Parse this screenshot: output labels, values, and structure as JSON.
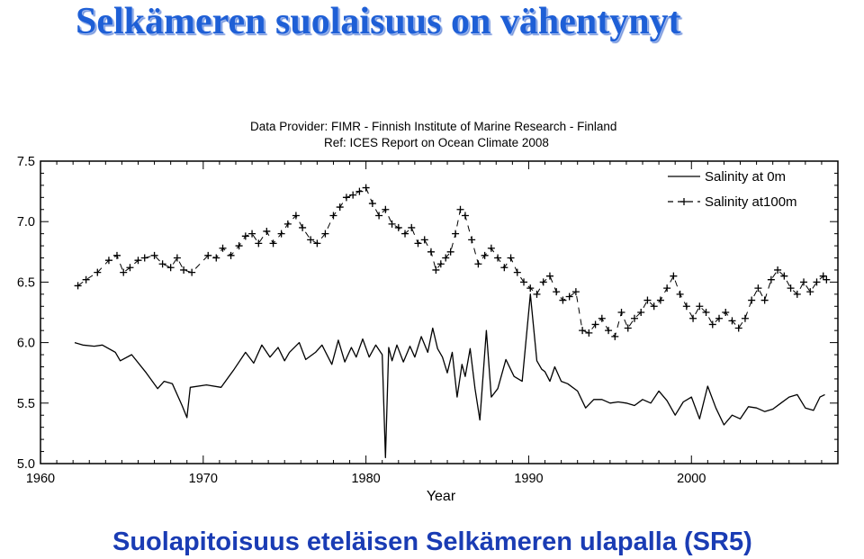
{
  "slide": {
    "title": "Selkämeren suolaisuus on vähentynyt",
    "subtitle": "Suolapitoisuus eteläisen Selkämeren ulapalla (SR5)",
    "title_color": "#1e5fd6",
    "subtitle_color": "#1a3cb4"
  },
  "chart_data": {
    "type": "line",
    "provider_line1": "Data Provider: FIMR - Finnish Institute of Marine Research - Finland",
    "provider_line2": "Ref: ICES Report on Ocean Climate 2008",
    "xlabel": "Year",
    "ylabel": "",
    "xlim": [
      1960,
      2009
    ],
    "ylim": [
      5.0,
      7.5
    ],
    "xticks": [
      "1960",
      "1970",
      "1980",
      "1990",
      "2000"
    ],
    "yticks": [
      "5.0",
      "5.5",
      "6.0",
      "6.5",
      "7.0",
      "7.5"
    ],
    "legend_position": "top-right",
    "grid": false,
    "series": [
      {
        "name": "Salinity at 0m",
        "marker": "none",
        "x": [
          1962.1,
          1962.6,
          1963.3,
          1963.8,
          1964.6,
          1964.9,
          1965.6,
          1966.5,
          1967.2,
          1967.6,
          1968.1,
          1968.7,
          1969.0,
          1969.2,
          1970.2,
          1971.1,
          1971.9,
          1972.6,
          1973.1,
          1973.6,
          1974.1,
          1974.6,
          1975.0,
          1975.3,
          1975.9,
          1976.3,
          1976.9,
          1977.3,
          1977.9,
          1978.3,
          1978.7,
          1979.1,
          1979.4,
          1979.8,
          1980.2,
          1980.6,
          1981.0,
          1981.2,
          1981.4,
          1981.6,
          1981.9,
          1982.3,
          1982.7,
          1983.0,
          1983.4,
          1983.8,
          1984.1,
          1984.4,
          1984.7,
          1985.0,
          1985.3,
          1985.6,
          1985.9,
          1986.1,
          1986.4,
          1986.7,
          1987.0,
          1987.4,
          1987.7,
          1988.1,
          1988.6,
          1989.1,
          1989.6,
          1990.1,
          1990.5,
          1990.8,
          1991.0,
          1991.3,
          1991.6,
          1992.0,
          1992.4,
          1993.0,
          1993.5,
          1994.0,
          1994.5,
          1995.0,
          1995.5,
          1996.0,
          1996.5,
          1997.0,
          1997.5,
          1998.0,
          1998.5,
          1999.0,
          1999.5,
          2000.0,
          2000.5,
          2001.0,
          2001.5,
          2002.0,
          2002.5,
          2003.0,
          2003.5,
          2004.0,
          2004.5,
          2005.0,
          2005.5,
          2006.0,
          2006.5,
          2007.0,
          2007.5,
          2007.9,
          2008.2
        ],
        "y": [
          6.0,
          5.98,
          5.97,
          5.98,
          5.92,
          5.85,
          5.9,
          5.75,
          5.62,
          5.68,
          5.66,
          5.48,
          5.38,
          5.63,
          5.65,
          5.63,
          5.78,
          5.92,
          5.83,
          5.98,
          5.88,
          5.96,
          5.85,
          5.92,
          6.0,
          5.86,
          5.92,
          5.98,
          5.82,
          6.02,
          5.84,
          5.96,
          5.88,
          6.03,
          5.88,
          5.98,
          5.9,
          5.05,
          5.96,
          5.85,
          5.98,
          5.84,
          5.97,
          5.88,
          6.05,
          5.92,
          6.12,
          5.95,
          5.88,
          5.75,
          5.92,
          5.55,
          5.82,
          5.72,
          5.95,
          5.62,
          5.36,
          6.1,
          5.55,
          5.62,
          5.86,
          5.72,
          5.68,
          6.4,
          5.85,
          5.78,
          5.76,
          5.68,
          5.8,
          5.68,
          5.66,
          5.6,
          5.46,
          5.53,
          5.53,
          5.5,
          5.51,
          5.5,
          5.48,
          5.53,
          5.5,
          5.6,
          5.52,
          5.4,
          5.51,
          5.55,
          5.37,
          5.64,
          5.46,
          5.32,
          5.4,
          5.37,
          5.47,
          5.46,
          5.43,
          5.45,
          5.5,
          5.55,
          5.57,
          5.46,
          5.44,
          5.55,
          5.57
        ]
      },
      {
        "name": "Salinity at100m",
        "marker": "plus",
        "x": [
          1962.3,
          1962.8,
          1963.5,
          1964.2,
          1964.7,
          1965.1,
          1965.5,
          1966.0,
          1966.4,
          1967.0,
          1967.5,
          1968.0,
          1968.4,
          1968.8,
          1969.3,
          1970.3,
          1970.8,
          1971.2,
          1971.7,
          1972.2,
          1972.6,
          1973.0,
          1973.4,
          1973.9,
          1974.3,
          1974.8,
          1975.2,
          1975.7,
          1976.1,
          1976.6,
          1977.0,
          1977.5,
          1978.0,
          1978.4,
          1978.8,
          1979.2,
          1979.6,
          1980.0,
          1980.4,
          1980.8,
          1981.2,
          1981.6,
          1982.0,
          1982.4,
          1982.8,
          1983.2,
          1983.6,
          1984.0,
          1984.3,
          1984.6,
          1984.9,
          1985.2,
          1985.5,
          1985.8,
          1986.1,
          1986.5,
          1986.9,
          1987.3,
          1987.7,
          1988.1,
          1988.5,
          1988.9,
          1989.3,
          1989.7,
          1990.1,
          1990.5,
          1990.9,
          1991.3,
          1991.7,
          1992.1,
          1992.5,
          1992.9,
          1993.3,
          1993.7,
          1994.1,
          1994.5,
          1994.9,
          1995.3,
          1995.7,
          1996.1,
          1996.5,
          1996.9,
          1997.3,
          1997.7,
          1998.1,
          1998.5,
          1998.9,
          1999.3,
          1999.7,
          2000.1,
          2000.5,
          2000.9,
          2001.3,
          2001.7,
          2002.1,
          2002.5,
          2002.9,
          2003.3,
          2003.7,
          2004.1,
          2004.5,
          2004.9,
          2005.3,
          2005.7,
          2006.1,
          2006.5,
          2006.9,
          2007.3,
          2007.7,
          2008.1,
          2008.3
        ],
        "y": [
          6.47,
          6.52,
          6.58,
          6.68,
          6.72,
          6.58,
          6.62,
          6.68,
          6.7,
          6.72,
          6.65,
          6.62,
          6.7,
          6.6,
          6.58,
          6.72,
          6.7,
          6.78,
          6.72,
          6.8,
          6.88,
          6.9,
          6.82,
          6.92,
          6.82,
          6.9,
          6.98,
          7.05,
          6.95,
          6.85,
          6.82,
          6.9,
          7.05,
          7.12,
          7.2,
          7.22,
          7.25,
          7.28,
          7.15,
          7.05,
          7.1,
          6.98,
          6.95,
          6.9,
          6.95,
          6.82,
          6.85,
          6.75,
          6.6,
          6.65,
          6.7,
          6.75,
          6.9,
          7.1,
          7.05,
          6.85,
          6.65,
          6.72,
          6.78,
          6.7,
          6.62,
          6.7,
          6.58,
          6.5,
          6.45,
          6.4,
          6.5,
          6.55,
          6.42,
          6.35,
          6.38,
          6.42,
          6.1,
          6.08,
          6.15,
          6.2,
          6.1,
          6.05,
          6.25,
          6.12,
          6.2,
          6.25,
          6.35,
          6.3,
          6.35,
          6.45,
          6.55,
          6.4,
          6.3,
          6.2,
          6.3,
          6.25,
          6.15,
          6.2,
          6.25,
          6.18,
          6.12,
          6.2,
          6.35,
          6.45,
          6.35,
          6.52,
          6.6,
          6.55,
          6.45,
          6.4,
          6.5,
          6.42,
          6.5,
          6.55,
          6.52
        ]
      }
    ]
  }
}
